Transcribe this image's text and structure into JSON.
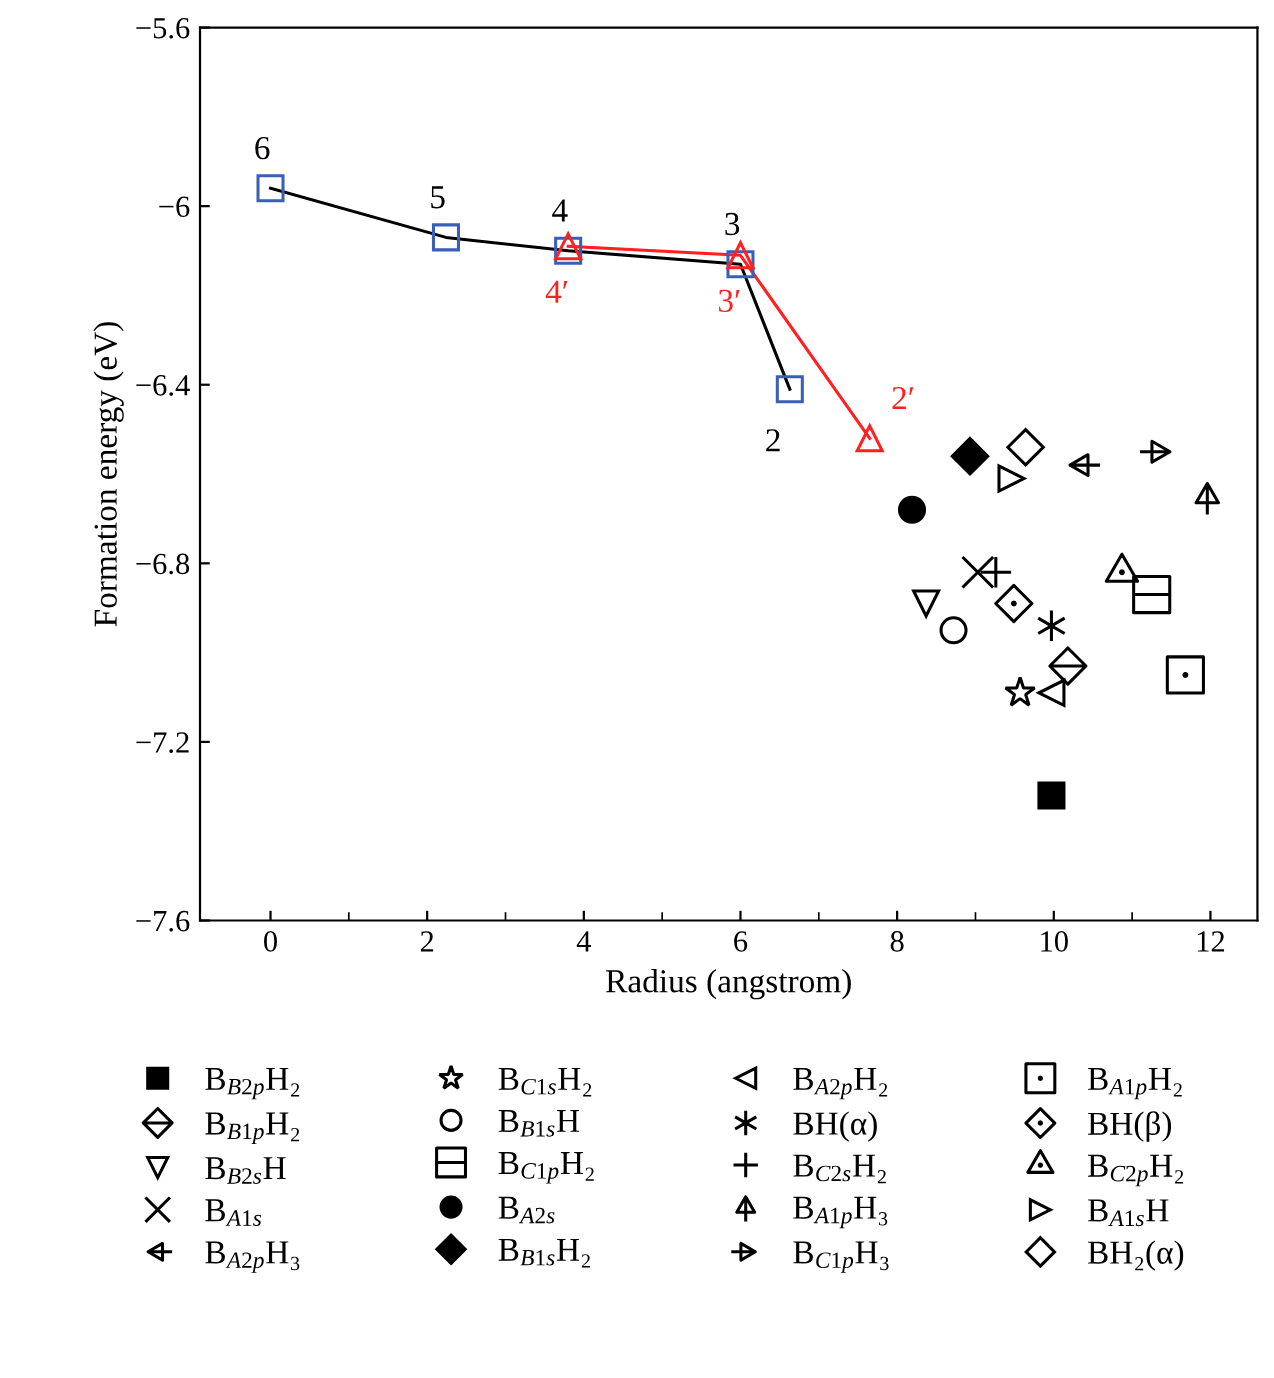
{
  "chart_data": {
    "type": "scatter",
    "xlabel": "Radius (angstrom)",
    "ylabel": "Formation energy (eV)",
    "xlim": [
      -0.9,
      12.6
    ],
    "ylim": [
      -7.6,
      -5.6
    ],
    "xticks": [
      0,
      2,
      4,
      6,
      8,
      10,
      12
    ],
    "yticks": [
      {
        "value": -7.6,
        "label": "−7.6"
      },
      {
        "value": -7.2,
        "label": "−7.2"
      },
      {
        "value": -6.8,
        "label": "−6.8"
      },
      {
        "value": -6.4,
        "label": "−6.4"
      },
      {
        "value": -6,
        "label": "−6"
      },
      {
        "value": -5.6,
        "label": "−5.6"
      }
    ],
    "grid": false,
    "legend": "bottom",
    "annotations": [
      {
        "text": "6",
        "x": 0,
        "y": -5.96
      },
      {
        "text": "5",
        "x": 2.24,
        "y": -6.07
      },
      {
        "text": "4",
        "x": 3.8,
        "y": -6.1
      },
      {
        "text": "3",
        "x": 6.0,
        "y": -6.13
      },
      {
        "text": "2",
        "x": 6.63,
        "y": -6.41
      },
      {
        "text": "4′",
        "x": 3.8,
        "y": -6.09
      },
      {
        "text": "3′",
        "x": 6.0,
        "y": -6.11
      },
      {
        "text": "2′",
        "x": 7.65,
        "y": -6.52
      }
    ],
    "series": [
      {
        "type": "line",
        "color": "#000000",
        "colors": [
          "#3a5fb8",
          "#3a5fb8",
          "#3a5fb8",
          "#3a5fb8",
          "#3a5fb8"
        ],
        "marker": "square",
        "x": [
          0,
          2.24,
          3.8,
          6.0,
          6.63
        ],
        "values": [
          -5.96,
          -6.07,
          -6.1,
          -6.13,
          -6.41
        ]
      },
      {
        "type": "line",
        "color": "#ff2020",
        "marker": "triangle",
        "x": [
          3.8,
          6.0,
          7.65
        ],
        "values": [
          -6.09,
          -6.11,
          -6.52
        ]
      },
      {
        "name": "B$_{B2p}$H₂",
        "color": "#000000",
        "marker": "square",
        "x": [
          9.97
        ],
        "values": [
          -7.32
        ]
      },
      {
        "name": "B$_{B1p}$H₂",
        "color": "#000000",
        "x": [
          10.18
        ],
        "values": [
          -7.03
        ]
      },
      {
        "name": "B$_{B2s}$H",
        "color": "#000000",
        "marker": "triangle",
        "x": [
          8.37
        ],
        "values": [
          -6.89
        ]
      },
      {
        "name": "B$_{A1s}$",
        "color": "#000000",
        "marker": "cross",
        "x": [
          9.03
        ],
        "values": [
          -6.82
        ]
      },
      {
        "name": "B$_{A2p}$H₃",
        "color": "#000000",
        "x": [
          10.36
        ],
        "values": [
          -6.58
        ]
      },
      {
        "name": "B$_{C1s}$H₂",
        "color": "#000000",
        "marker": "star",
        "x": [
          9.57
        ],
        "values": [
          -7.09
        ]
      },
      {
        "name": "B$_{B1s}$H",
        "color": "#000000",
        "marker": "circle",
        "x": [
          8.72
        ],
        "values": [
          -6.95
        ]
      },
      {
        "name": "B$_{C1p}$H₂",
        "color": "#000000",
        "x": [
          11.25
        ],
        "values": [
          -6.87
        ]
      },
      {
        "name": "B$_{A2s}$",
        "color": "#000000",
        "marker": "circle",
        "x": [
          8.19
        ],
        "values": [
          -6.68
        ]
      },
      {
        "name": "B$_{B1s}$H₂",
        "color": "#000000",
        "marker": "diamond",
        "x": [
          8.93
        ],
        "values": [
          -6.56
        ]
      },
      {
        "name": "B$_{A2p}$H₂",
        "color": "#000000",
        "marker": "triangle",
        "x": [
          9.97
        ],
        "values": [
          -7.09
        ]
      },
      {
        "name": "BH(α)",
        "color": "#000000",
        "marker": "cross",
        "x": [
          9.97
        ],
        "values": [
          -6.94
        ]
      },
      {
        "name": "B$_{C2s}$H₂",
        "color": "#000000",
        "marker": "cross",
        "x": [
          9.26
        ],
        "values": [
          -6.82
        ]
      },
      {
        "name": "B$_{A1p}$H₃",
        "color": "#000000",
        "x": [
          11.96
        ],
        "values": [
          -6.65
        ]
      },
      {
        "name": "B$_{C1p}$H₃",
        "color": "#000000",
        "x": [
          11.33
        ],
        "values": [
          -6.55
        ]
      },
      {
        "name": "B$_{A1p}$H₂",
        "color": "#000000",
        "x": [
          11.68
        ],
        "values": [
          -7.05
        ]
      },
      {
        "name": "BH(β)",
        "color": "#000000",
        "x": [
          9.49
        ],
        "values": [
          -6.89
        ]
      },
      {
        "name": "B$_{C2p}$H₂",
        "color": "#000000",
        "marker": "triangle",
        "x": [
          10.87
        ],
        "values": [
          -6.82
        ]
      },
      {
        "name": "B$_{A1s}$H",
        "color": "#000000",
        "marker": "triangle",
        "x": [
          9.46
        ],
        "values": [
          -6.61
        ]
      },
      {
        "name": "BH₂(α)",
        "color": "#000000",
        "marker": "diamond",
        "x": [
          9.64
        ],
        "values": [
          -6.54
        ]
      }
    ]
  }
}
